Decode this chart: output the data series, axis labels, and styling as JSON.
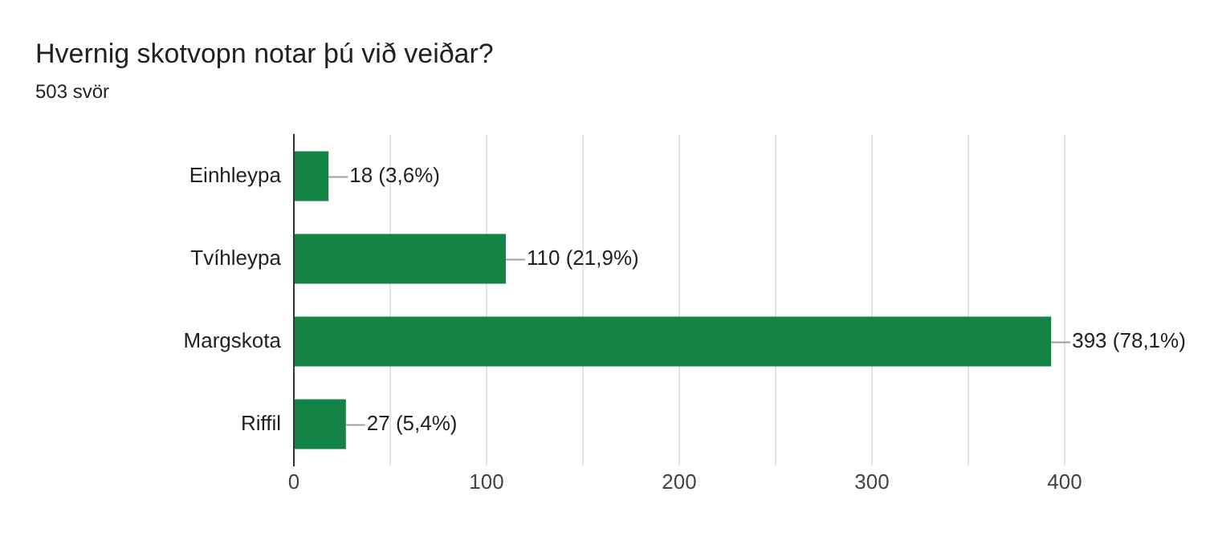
{
  "chart_data": {
    "type": "bar",
    "orientation": "horizontal",
    "title": "Hvernig skotvopn notar þú við veiðar?",
    "subtitle": "503 svör",
    "categories": [
      "Einhleypa",
      "Tvíhleypa",
      "Margskota",
      "Riffil"
    ],
    "values": [
      18,
      110,
      393,
      27
    ],
    "value_labels": [
      "18 (3,6%)",
      "110 (21,9%)",
      "393 (78,1%)",
      "27 (5,4%)"
    ],
    "color": "#138346",
    "xlim": [
      0,
      400
    ],
    "xticks": [
      0,
      {
        "value": 50,
        "label": null
      },
      100,
      {
        "value": 150,
        "label": null
      },
      200,
      {
        "value": 250,
        "label": null
      },
      300,
      {
        "value": 350,
        "label": null
      },
      400
    ],
    "grid": "x",
    "legend": false
  }
}
